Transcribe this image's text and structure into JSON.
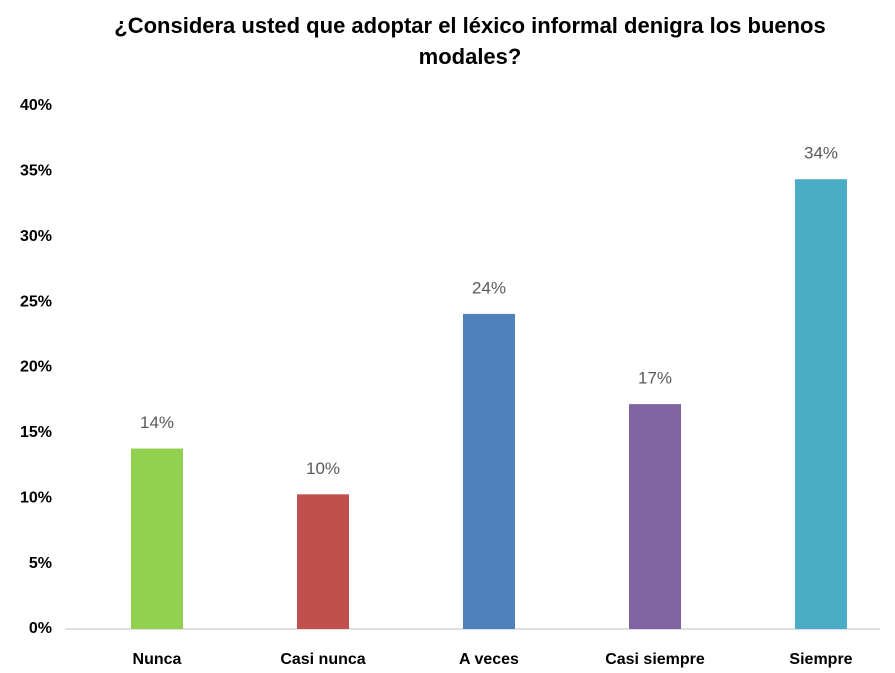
{
  "chart_data": {
    "type": "bar",
    "title": "¿Considera usted que adoptar el léxico informal denigra los buenos modales?",
    "categories": [
      "Nunca",
      "Casi nunca",
      "A veces",
      "Casi siempre",
      "Siempre"
    ],
    "values": [
      13.8,
      10.3,
      24.1,
      17.2,
      34.4
    ],
    "value_labels": [
      "14%",
      "10%",
      "24%",
      "17%",
      "34%"
    ],
    "colors": [
      "#92d050",
      "#c0504d",
      "#4f81bd",
      "#8064a2",
      "#4bacc6"
    ],
    "ylim": [
      0,
      40
    ],
    "yticks": [
      {
        "value": 0,
        "label": "0%"
      },
      {
        "value": 5,
        "label": "5%"
      },
      {
        "value": 10,
        "label": "10%"
      },
      {
        "value": 15,
        "label": "15%"
      },
      {
        "value": 20,
        "label": "20%"
      },
      {
        "value": 25,
        "label": "25%"
      },
      {
        "value": 30,
        "label": "30%"
      },
      {
        "value": 35,
        "label": "35%"
      },
      {
        "value": 40,
        "label": "40%"
      }
    ],
    "grid": false
  }
}
